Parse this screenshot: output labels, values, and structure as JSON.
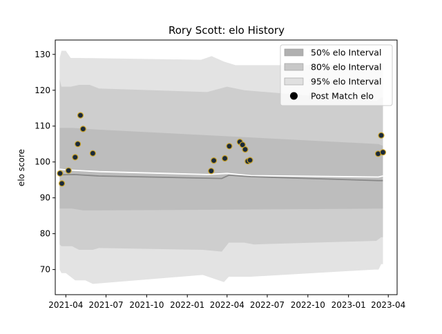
{
  "chart_data": {
    "type": "line",
    "title": "Rory Scott: elo History",
    "xlabel": "",
    "ylabel": "elo score",
    "xlim": [
      "2021-03-08",
      "2023-04-21"
    ],
    "ylim": [
      63,
      134
    ],
    "grid": false,
    "legend_placement": "top-right",
    "x_ticks": [
      "2021-04-01",
      "2021-07-01",
      "2021-10-01",
      "2022-01-01",
      "2022-04-01",
      "2022-07-01",
      "2022-10-01",
      "2023-01-01",
      "2023-04-01"
    ],
    "x_tick_labels": [
      "2021-04",
      "2021-07",
      "2021-10",
      "2022-01",
      "2022-04",
      "2022-07",
      "2022-10",
      "2023-01",
      "2023-04"
    ],
    "y_ticks": [
      70,
      80,
      90,
      100,
      110,
      120,
      130
    ],
    "y_tick_labels": [
      "70",
      "80",
      "90",
      "100",
      "110",
      "120",
      "130"
    ],
    "legend": [
      {
        "label": "50% elo Interval",
        "kind": "patch",
        "color": "#b0b0b0"
      },
      {
        "label": "80% elo Interval",
        "kind": "patch",
        "color": "#c8c8c8"
      },
      {
        "label": "95% elo Interval",
        "kind": "patch",
        "color": "#e0e0e0"
      },
      {
        "label": "Post Match elo",
        "kind": "marker",
        "color": "#000000"
      }
    ],
    "bands": [
      {
        "name": "95% elo Interval",
        "color": "#e3e3e3",
        "upper": [
          [
            "2021-03-18",
            129
          ],
          [
            "2021-03-22",
            131
          ],
          [
            "2021-04-01",
            131
          ],
          [
            "2021-04-12",
            129
          ],
          [
            "2021-05-01",
            129
          ],
          [
            "2022-02-01",
            128.5
          ],
          [
            "2022-02-25",
            129.5
          ],
          [
            "2022-03-25",
            128
          ],
          [
            "2022-04-20",
            127
          ],
          [
            "2022-05-20",
            127
          ],
          [
            "2023-03-10",
            127
          ],
          [
            "2023-03-16",
            127.5
          ],
          [
            "2023-03-20",
            127.5
          ]
        ],
        "lower": [
          [
            "2021-03-18",
            70
          ],
          [
            "2021-03-22",
            69
          ],
          [
            "2021-04-01",
            69
          ],
          [
            "2021-04-22",
            67
          ],
          [
            "2021-05-15",
            67
          ],
          [
            "2021-06-01",
            66
          ],
          [
            "2022-02-05",
            68.5
          ],
          [
            "2022-03-25",
            66.5
          ],
          [
            "2022-04-05",
            68
          ],
          [
            "2022-05-25",
            68
          ],
          [
            "2023-03-01",
            70
          ],
          [
            "2023-03-10",
            70
          ],
          [
            "2023-03-16",
            71.5
          ],
          [
            "2023-03-20",
            71.5
          ]
        ]
      },
      {
        "name": "80% elo Interval",
        "color": "#cecece",
        "upper": [
          [
            "2021-03-18",
            123
          ],
          [
            "2021-03-22",
            121
          ],
          [
            "2021-04-12",
            121
          ],
          [
            "2021-05-01",
            121.5
          ],
          [
            "2021-05-25",
            121.5
          ],
          [
            "2021-06-15",
            120.5
          ],
          [
            "2022-02-15",
            119.5
          ],
          [
            "2022-04-01",
            121
          ],
          [
            "2022-05-10",
            120
          ],
          [
            "2023-03-05",
            117
          ],
          [
            "2023-03-16",
            118
          ],
          [
            "2023-03-20",
            118
          ]
        ],
        "lower": [
          [
            "2021-03-18",
            77
          ],
          [
            "2021-03-22",
            76.5
          ],
          [
            "2021-04-15",
            76.5
          ],
          [
            "2021-05-01",
            75.5
          ],
          [
            "2021-06-01",
            75.5
          ],
          [
            "2021-06-15",
            76
          ],
          [
            "2022-02-05",
            75.5
          ],
          [
            "2022-03-20",
            75
          ],
          [
            "2022-04-05",
            77.5
          ],
          [
            "2022-05-10",
            77.5
          ],
          [
            "2022-06-01",
            77
          ],
          [
            "2023-03-05",
            78
          ],
          [
            "2023-03-16",
            79
          ],
          [
            "2023-03-20",
            79
          ]
        ]
      },
      {
        "name": "50% elo Interval",
        "color": "#bdbdbd",
        "upper": [
          [
            "2021-03-18",
            109.5
          ],
          [
            "2021-04-15",
            109.5
          ],
          [
            "2021-06-15",
            109
          ],
          [
            "2023-03-10",
            105
          ],
          [
            "2023-03-20",
            104.5
          ]
        ],
        "lower": [
          [
            "2021-03-18",
            87
          ],
          [
            "2021-03-22",
            87
          ],
          [
            "2021-04-15",
            87
          ],
          [
            "2021-05-10",
            86.5
          ],
          [
            "2021-06-15",
            86.5
          ],
          [
            "2023-03-20",
            87
          ]
        ]
      }
    ],
    "series": [
      {
        "color": "#ffffff",
        "points": [
          [
            "2021-03-18",
            98
          ],
          [
            "2021-04-01",
            97.8
          ],
          [
            "2021-06-15",
            97.3
          ],
          [
            "2022-02-15",
            96.5
          ],
          [
            "2022-04-01",
            96.8
          ],
          [
            "2022-05-25",
            96.2
          ],
          [
            "2023-03-10",
            95.8
          ],
          [
            "2023-03-20",
            96.1
          ]
        ]
      },
      {
        "color": "#888888",
        "points": [
          [
            "2021-03-18",
            96.4
          ],
          [
            "2021-04-20",
            96.5
          ],
          [
            "2021-06-15",
            96.1
          ],
          [
            "2022-03-20",
            95.4
          ],
          [
            "2022-04-05",
            96.3
          ],
          [
            "2022-05-25",
            95.9
          ],
          [
            "2023-03-10",
            94.8
          ],
          [
            "2023-03-20",
            94.8
          ]
        ]
      }
    ],
    "matches": {
      "name": "Post Match elo",
      "fill": "#1b2a3a",
      "edge": "#c9a227",
      "points": [
        [
          "2021-03-19",
          96.8
        ],
        [
          "2021-03-23",
          94
        ],
        [
          "2021-04-07",
          97.6
        ],
        [
          "2021-04-22",
          101.3
        ],
        [
          "2021-04-28",
          105
        ],
        [
          "2021-05-04",
          113
        ],
        [
          "2021-05-10",
          109.2
        ],
        [
          "2021-06-01",
          102.4
        ],
        [
          "2022-02-24",
          97.5
        ],
        [
          "2022-03-02",
          100.4
        ],
        [
          "2022-03-27",
          101
        ],
        [
          "2022-04-06",
          104.4
        ],
        [
          "2022-04-30",
          105.6
        ],
        [
          "2022-05-06",
          104.8
        ],
        [
          "2022-05-12",
          103.5
        ],
        [
          "2022-05-18",
          100.2
        ],
        [
          "2022-05-23",
          100.5
        ],
        [
          "2023-03-09",
          102.3
        ],
        [
          "2023-03-16",
          107.4
        ],
        [
          "2023-03-20",
          102.7
        ]
      ]
    }
  }
}
